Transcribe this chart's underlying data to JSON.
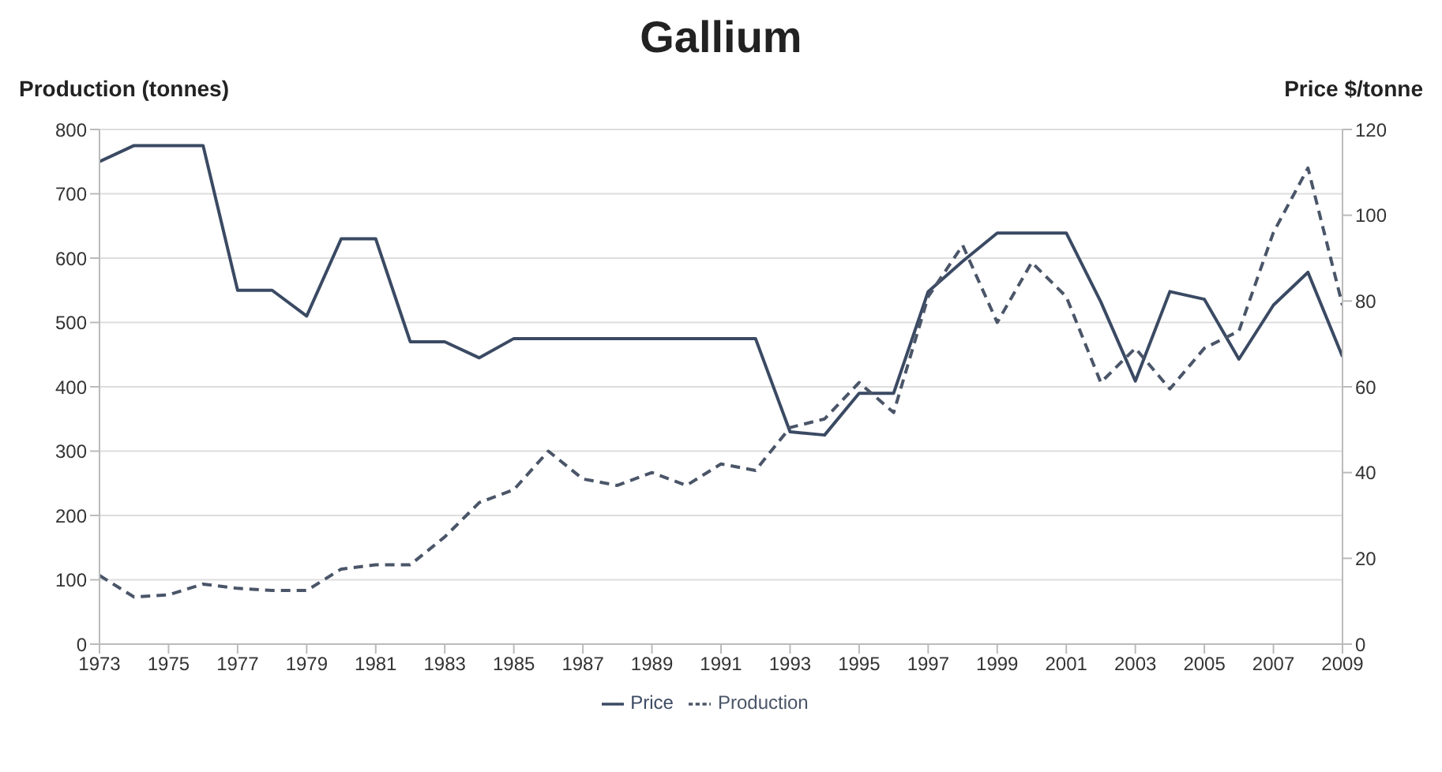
{
  "chart_data": {
    "type": "line",
    "title": "Gallium",
    "ylabel": "Production (tonnes)",
    "y2label": "Price $/tonne",
    "x": [
      1973,
      1974,
      1975,
      1976,
      1977,
      1978,
      1979,
      1980,
      1981,
      1982,
      1983,
      1984,
      1985,
      1986,
      1987,
      1988,
      1989,
      1990,
      1991,
      1992,
      1993,
      1994,
      1995,
      1996,
      1997,
      1998,
      1999,
      2000,
      2001,
      2002,
      2003,
      2004,
      2005,
      2006,
      2007,
      2008,
      2009
    ],
    "series": [
      {
        "name": "Price",
        "color": "#3b4a63",
        "line_style": "solid",
        "values": [
          750,
          775,
          775,
          775,
          550,
          550,
          510,
          630,
          630,
          470,
          470,
          445,
          475,
          475,
          475,
          475,
          475,
          475,
          475,
          475,
          330,
          325,
          390,
          390,
          548,
          595,
          639,
          639,
          639,
          532,
          409,
          548,
          536,
          443,
          527,
          578,
          447
        ]
      },
      {
        "name": "Production",
        "color": "#4a5568",
        "line_style": "dashed",
        "axis": "y2",
        "values": [
          16,
          11,
          11.5,
          14,
          13,
          12.5,
          12.5,
          17.5,
          18.5,
          18.5,
          25,
          33,
          36,
          45,
          38.5,
          37,
          40,
          37,
          42,
          40.5,
          50.5,
          52.5,
          61,
          54,
          81,
          93,
          75,
          89,
          81,
          61,
          69,
          59.5,
          69,
          73,
          96,
          111,
          79
        ]
      }
    ],
    "xlim": [
      1973,
      2009
    ],
    "xticks": [
      1973,
      1975,
      1977,
      1979,
      1981,
      1983,
      1985,
      1987,
      1989,
      1991,
      1993,
      1995,
      1997,
      1999,
      2001,
      2003,
      2005,
      2007,
      2009
    ],
    "ylim": [
      0,
      800
    ],
    "yticks": [
      0,
      100,
      200,
      300,
      400,
      500,
      600,
      700,
      800
    ],
    "y2lim": [
      0,
      120
    ],
    "y2ticks": [
      0,
      20,
      40,
      60,
      80,
      100,
      120
    ],
    "grid": "y",
    "legend": "bottom",
    "marker": "none"
  }
}
